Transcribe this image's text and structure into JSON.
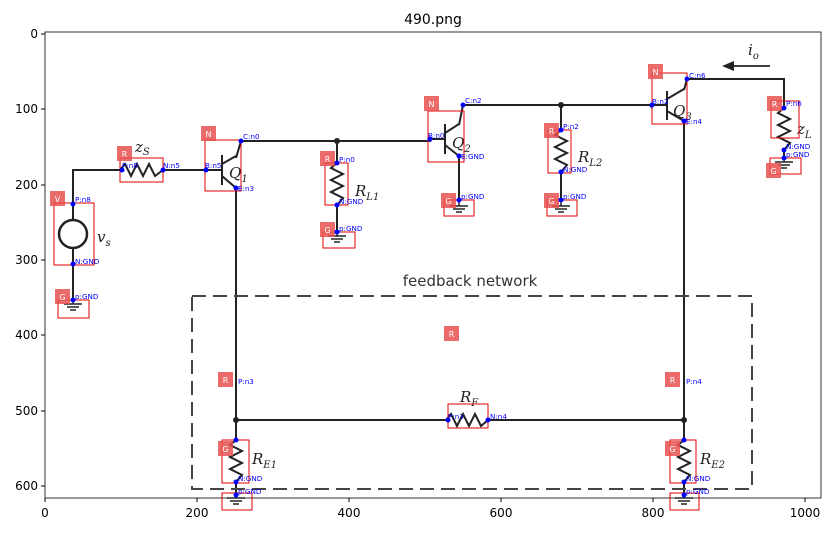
{
  "title": "490.png",
  "x_ticks": [
    "0",
    "200",
    "400",
    "600",
    "800",
    "1000"
  ],
  "y_ticks": [
    "0",
    "100",
    "200",
    "300",
    "400",
    "500",
    "600"
  ],
  "feedback_label": "feedback network",
  "component_labels": {
    "zs": "z",
    "zs_sub": "S",
    "vs": "v",
    "vs_sub": "s",
    "q1": "Q",
    "q1_sub": "1",
    "q2": "Q",
    "q2_sub": "2",
    "q3": "Q",
    "q3_sub": "3",
    "rl1": "R",
    "rl1_sub": "L1",
    "rl2": "R",
    "rl2_sub": "L2",
    "zl": "z",
    "zl_sub": "L",
    "rf": "R",
    "rf_sub": "F",
    "re1": "R",
    "re1_sub": "E1",
    "re2": "R",
    "re2_sub": "E2",
    "io": "i",
    "io_sub": "o"
  },
  "badges": {
    "v": "V",
    "g_vs": "G",
    "r_zs": "R",
    "n_q1": "N",
    "r_rl1": "R",
    "g_rl1": "G",
    "n_q2": "N",
    "g_q2": "G",
    "r_rl2": "R",
    "g_rl2": "G",
    "n_q3": "N",
    "r_zl": "R",
    "g_zl": "G",
    "r_rf": "R",
    "r_re1": "R",
    "g_re1": "G",
    "r_re2": "R",
    "g_re2": "G"
  },
  "pins": {
    "vs_p": "P:n8",
    "vs_n": "N:GND",
    "g_vs": "p:GND",
    "zs_p": "P:n8",
    "zs_n": "N:n5",
    "q1_b": "B:n5",
    "q1_c": "C:n0",
    "q1_e": "E:n3",
    "rl1_p": "P:n0",
    "rl1_n": "N:GND",
    "g_rl1": "p:GND",
    "q2_b": "B:n0",
    "q2_c": "C:n2",
    "q2_e": "E:GND",
    "g_q2": "p:GND",
    "rl2_p": "P:n2",
    "rl2_n": "N:GND",
    "g_rl2": "p:GND",
    "q3_b": "B:n2",
    "q3_c": "C:n6",
    "q3_e": "E:n4",
    "zl_p": "P:n6",
    "zl_n": "N:GND",
    "g_zl": "p:GND",
    "rf_p": "P:n3",
    "rf_n": "N:n4",
    "re1_p": "P:n3",
    "re1_n": "N:GND",
    "g_re1": "p:GND",
    "re2_p": "P:n4",
    "re2_n": "N:GND",
    "g_re2": "p:GND"
  }
}
